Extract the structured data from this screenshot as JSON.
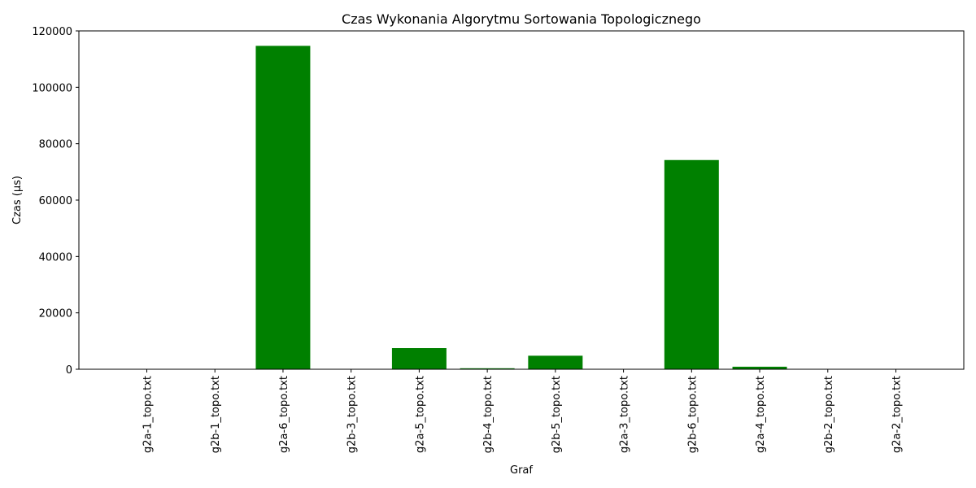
{
  "chart_data": {
    "type": "bar",
    "title": "Czas Wykonania Algorytmu Sortowania Topologicznego",
    "xlabel": "Graf",
    "ylabel": "Czas (µs)",
    "categories": [
      "g2a-1_topo.txt",
      "g2b-1_topo.txt",
      "g2a-6_topo.txt",
      "g2b-3_topo.txt",
      "g2a-5_topo.txt",
      "g2b-4_topo.txt",
      "g2b-5_topo.txt",
      "g2a-3_topo.txt",
      "g2b-6_topo.txt",
      "g2a-4_topo.txt",
      "g2b-2_topo.txt",
      "g2a-2_topo.txt"
    ],
    "values": [
      20,
      20,
      114700,
      30,
      7500,
      350,
      4800,
      40,
      74200,
      900,
      20,
      20
    ],
    "ylim": [
      0,
      120000
    ],
    "yticks": [
      "0",
      "20000",
      "40000",
      "60000",
      "80000",
      "100000",
      "120000"
    ],
    "ytick_values": [
      0,
      20000,
      40000,
      60000,
      80000,
      100000,
      120000
    ],
    "bar_color": "#008000",
    "grid": false
  }
}
